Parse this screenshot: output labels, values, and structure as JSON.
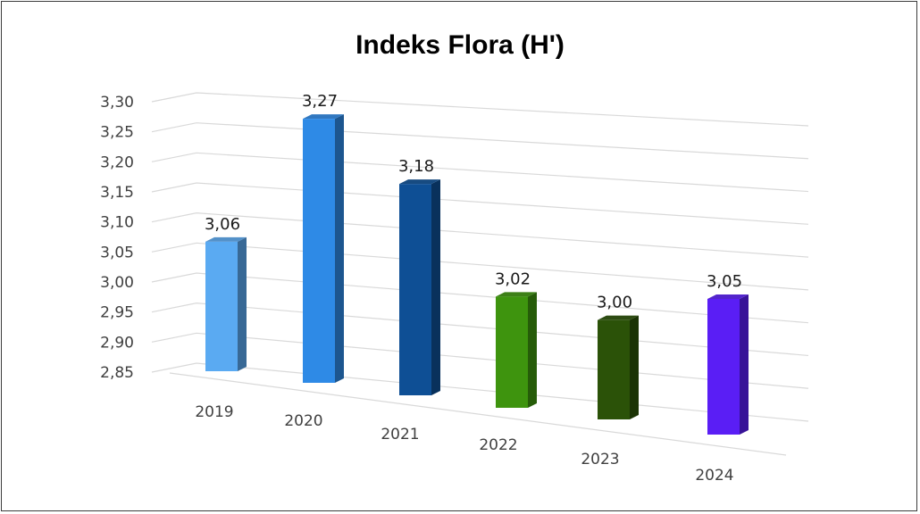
{
  "chart_data": {
    "type": "bar",
    "title": "Indeks Flora (H')",
    "categories": [
      "2019",
      "2020",
      "2021",
      "2022",
      "2023",
      "2024"
    ],
    "values": [
      3.06,
      3.27,
      3.18,
      3.02,
      3.0,
      3.05
    ],
    "data_labels": [
      "3,06",
      "3,27",
      "3,18",
      "3,02",
      "3,00",
      "3,05"
    ],
    "bar_colors": [
      "#5aaaf2",
      "#2e8ae6",
      "#0e4f95",
      "#3e940e",
      "#2b5208",
      "#5a1ef5"
    ],
    "ylim": [
      2.85,
      3.3
    ],
    "yticks": [
      "2,85",
      "2,90",
      "2,95",
      "3,00",
      "3,05",
      "3,10",
      "3,15",
      "3,20",
      "3,25",
      "3,30"
    ],
    "grid": true,
    "legend": "none",
    "xlabel": "",
    "ylabel": ""
  }
}
